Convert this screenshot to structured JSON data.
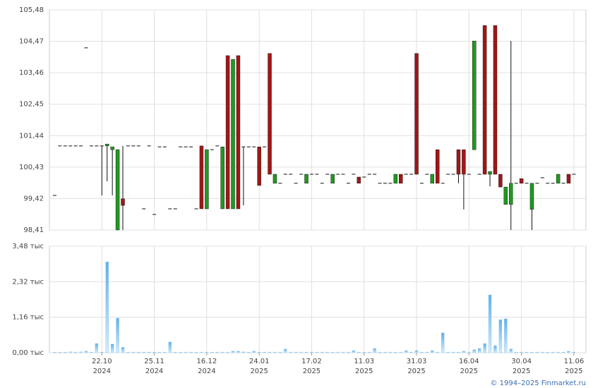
{
  "chart_data": [
    {
      "type": "candlestick",
      "up_color": "#1f9a1f",
      "down_color": "#a31515",
      "grid": true,
      "xlim": [
        -1,
        101.3
      ],
      "ylim": [
        98.41,
        105.48
      ],
      "yticks": [
        {
          "value": 98.41,
          "label": "98,41"
        },
        {
          "value": 99.42,
          "label": "99,42"
        },
        {
          "value": 100.43,
          "label": "100,43"
        },
        {
          "value": 101.44,
          "label": "101,44"
        },
        {
          "value": 102.45,
          "label": "102,45"
        },
        {
          "value": 103.46,
          "label": "103,46"
        },
        {
          "value": 104.47,
          "label": "104,47"
        },
        {
          "value": 105.48,
          "label": "105,48"
        }
      ],
      "open": [
        99.52,
        101.11,
        101.11,
        101.11,
        101.11,
        101.11,
        104.26,
        101.11,
        101.11,
        101.11,
        101.11,
        100.99,
        98.41,
        99.41,
        101.11,
        101.11,
        101.11,
        99.09,
        101.11,
        98.91,
        101.08,
        101.08,
        99.09,
        99.09,
        101.08,
        101.08,
        101.08,
        99.09,
        101.11,
        99.09,
        100.99,
        101.11,
        99.09,
        104.01,
        99.09,
        104.01,
        101.08,
        101.08,
        101.08,
        101.08,
        101.08,
        104.08,
        99.91,
        99.91,
        100.2,
        100.2,
        99.91,
        100.2,
        99.91,
        100.2,
        100.2,
        99.91,
        100.2,
        99.91,
        100.2,
        100.2,
        99.91,
        100.2,
        100.11,
        100.11,
        100.2,
        100.2,
        99.91,
        99.91,
        99.91,
        99.91,
        100.2,
        100.2,
        100.2,
        104.08,
        99.91,
        100.2,
        99.91,
        100.99,
        99.91,
        100.2,
        100.2,
        100.99,
        100.99,
        100.2,
        100.99,
        100.2,
        104.98,
        100.2,
        104.98,
        100.2,
        99.23,
        99.23,
        99.91,
        100.06,
        99.91,
        99.07,
        99.91,
        100.09,
        99.91,
        99.91,
        99.91,
        99.91,
        100.2,
        100.2
      ],
      "high": [
        99.52,
        101.11,
        101.11,
        101.11,
        101.11,
        101.11,
        104.26,
        101.11,
        101.11,
        101.11,
        101.17,
        101.08,
        100.99,
        101.11,
        101.11,
        101.11,
        101.11,
        99.09,
        101.11,
        98.91,
        101.08,
        101.08,
        99.09,
        99.09,
        101.08,
        101.08,
        101.08,
        99.09,
        101.11,
        100.99,
        100.99,
        101.11,
        101.08,
        104.01,
        103.89,
        104.01,
        101.08,
        101.08,
        101.08,
        101.08,
        101.08,
        104.08,
        100.2,
        99.91,
        100.2,
        100.2,
        99.91,
        100.2,
        100.2,
        100.2,
        100.2,
        99.91,
        100.2,
        100.2,
        100.2,
        100.2,
        99.91,
        100.2,
        100.11,
        100.11,
        100.2,
        100.2,
        99.91,
        99.91,
        99.91,
        100.2,
        100.2,
        100.2,
        100.2,
        104.08,
        99.91,
        100.2,
        100.2,
        100.99,
        99.91,
        100.2,
        100.2,
        100.99,
        100.99,
        100.2,
        104.48,
        100.2,
        104.98,
        100.29,
        104.98,
        100.2,
        99.79,
        104.48,
        99.91,
        100.06,
        99.91,
        99.91,
        99.91,
        100.09,
        99.91,
        99.91,
        100.2,
        99.91,
        100.2,
        100.2
      ],
      "low": [
        99.52,
        101.11,
        101.11,
        101.11,
        101.11,
        101.11,
        104.26,
        101.11,
        101.11,
        99.52,
        99.97,
        99.52,
        98.41,
        98.41,
        101.11,
        101.11,
        101.11,
        99.09,
        101.11,
        98.91,
        101.08,
        101.08,
        99.09,
        99.09,
        101.08,
        101.08,
        101.08,
        99.09,
        99.09,
        99.09,
        100.99,
        101.11,
        99.09,
        99.09,
        99.09,
        99.09,
        99.2,
        101.08,
        101.08,
        99.84,
        101.08,
        100.2,
        99.91,
        99.91,
        100.2,
        100.2,
        99.91,
        100.2,
        99.91,
        100.2,
        100.2,
        99.91,
        100.2,
        99.91,
        100.2,
        100.2,
        99.91,
        100.2,
        99.91,
        100.11,
        100.2,
        100.2,
        99.91,
        99.91,
        99.91,
        99.91,
        99.91,
        100.2,
        100.2,
        100.2,
        99.91,
        100.2,
        99.91,
        99.91,
        99.91,
        100.2,
        100.2,
        99.91,
        99.07,
        100.2,
        100.99,
        100.2,
        100.2,
        99.81,
        100.2,
        99.79,
        99.23,
        98.41,
        99.91,
        99.91,
        99.91,
        98.41,
        99.91,
        100.09,
        99.91,
        99.91,
        99.91,
        99.91,
        99.91,
        100.2
      ],
      "close": [
        99.52,
        101.11,
        101.11,
        101.11,
        101.11,
        101.11,
        104.26,
        101.11,
        101.11,
        101.11,
        101.17,
        101.08,
        100.99,
        99.2,
        101.11,
        101.11,
        101.11,
        99.09,
        101.11,
        98.91,
        101.08,
        101.08,
        99.09,
        99.09,
        101.08,
        101.08,
        101.08,
        99.09,
        99.09,
        100.99,
        100.99,
        101.11,
        101.08,
        99.09,
        103.89,
        99.09,
        101.08,
        101.08,
        101.08,
        99.84,
        101.08,
        100.2,
        100.2,
        99.91,
        100.2,
        100.2,
        99.91,
        100.2,
        100.2,
        100.2,
        100.2,
        99.91,
        100.2,
        100.2,
        100.2,
        100.2,
        99.91,
        100.2,
        99.91,
        100.11,
        100.2,
        100.2,
        99.91,
        99.91,
        99.91,
        100.2,
        99.91,
        100.2,
        100.2,
        100.2,
        99.91,
        100.2,
        100.2,
        99.91,
        99.91,
        100.2,
        100.2,
        100.2,
        100.2,
        100.2,
        104.48,
        100.2,
        100.2,
        100.29,
        100.2,
        99.79,
        99.79,
        99.91,
        99.91,
        99.91,
        99.91,
        99.91,
        99.91,
        100.09,
        99.91,
        99.91,
        100.2,
        99.91,
        99.91,
        100.2
      ]
    },
    {
      "type": "bar",
      "color": "#8cc8f2",
      "grid": true,
      "xlim": [
        -1,
        101.3
      ],
      "ylim": [
        0,
        3.48
      ],
      "yticks": [
        {
          "value": 0,
          "label": "0,00 тыс"
        },
        {
          "value": 1.16,
          "label": "1,16 тыс"
        },
        {
          "value": 2.32,
          "label": "2,32 тыс"
        },
        {
          "value": 3.48,
          "label": "3,48 тыс"
        }
      ],
      "xticks": [
        {
          "value": 9,
          "label": "22.10",
          "year": "2024"
        },
        {
          "value": 19,
          "label": "25.11",
          "year": "2024"
        },
        {
          "value": 29,
          "label": "16.12",
          "year": "2024"
        },
        {
          "value": 39,
          "label": "24.01",
          "year": "2025"
        },
        {
          "value": 49,
          "label": "17.02",
          "year": "2025"
        },
        {
          "value": 59,
          "label": "11.03",
          "year": "2025"
        },
        {
          "value": 69,
          "label": "31.03",
          "year": "2025"
        },
        {
          "value": 79,
          "label": "16.04",
          "year": "2025"
        },
        {
          "value": 89,
          "label": "30.04",
          "year": "2025"
        },
        {
          "value": 99,
          "label": "11.06",
          "year": "2025"
        }
      ],
      "values": [
        0.02,
        0.02,
        0.02,
        0.03,
        0.02,
        0.03,
        0.05,
        0.02,
        0.3,
        0.02,
        2.97,
        0.28,
        1.13,
        0.18,
        0.02,
        0.02,
        0.02,
        0.02,
        0.02,
        0.02,
        0.02,
        0.02,
        0.35,
        0.02,
        0.02,
        0.02,
        0.02,
        0.02,
        0.02,
        0.02,
        0.02,
        0.02,
        0.02,
        0.02,
        0.05,
        0.05,
        0.03,
        0.02,
        0.05,
        0.02,
        0.02,
        0.02,
        0.02,
        0.02,
        0.12,
        0.02,
        0.02,
        0.02,
        0.02,
        0.02,
        0.02,
        0.02,
        0.02,
        0.02,
        0.02,
        0.02,
        0.02,
        0.07,
        0.02,
        0.02,
        0.02,
        0.14,
        0.02,
        0.02,
        0.02,
        0.02,
        0.02,
        0.07,
        0.02,
        0.07,
        0.02,
        0.02,
        0.07,
        0.02,
        0.65,
        0.02,
        0.02,
        0.02,
        0.05,
        0.02,
        0.1,
        0.14,
        0.3,
        1.89,
        0.23,
        1.08,
        1.11,
        0.12,
        0.02,
        0.02,
        0.02,
        0.02,
        0.02,
        0.02,
        0.02,
        0.02,
        0.02,
        0.02,
        0.05,
        0.02
      ]
    }
  ],
  "footer": "© 1994–2025 Finmarket.ru"
}
